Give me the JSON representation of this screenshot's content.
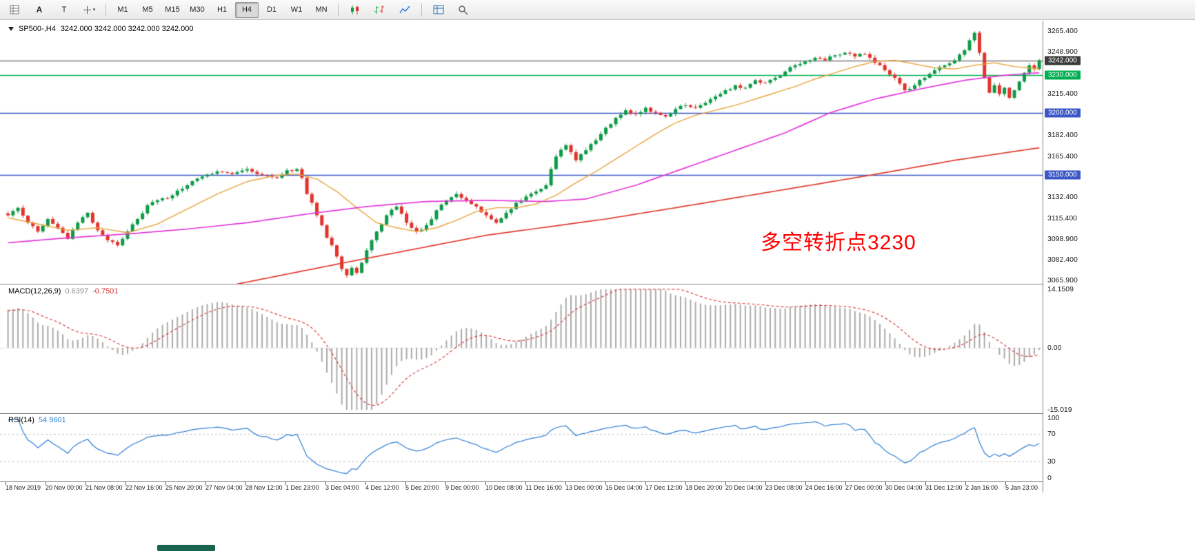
{
  "toolbar": {
    "left_icons": [
      {
        "name": "chart-grid-icon",
        "type": "svg"
      },
      {
        "name": "font-a-icon",
        "type": "text",
        "label": "A"
      },
      {
        "name": "text-tool-icon",
        "type": "text",
        "label": "T"
      },
      {
        "name": "cursor-mode-icon",
        "type": "svg",
        "has_caret": true
      }
    ],
    "timeframes": [
      {
        "label": "M1"
      },
      {
        "label": "M5"
      },
      {
        "label": "M15"
      },
      {
        "label": "M30"
      },
      {
        "label": "H1"
      },
      {
        "label": "H4"
      },
      {
        "label": "D1"
      },
      {
        "label": "W1"
      },
      {
        "label": "MN"
      }
    ],
    "active_timeframe": "H4",
    "right_icons": [
      {
        "name": "candlesticks-icon"
      },
      {
        "name": "bar-chart-icon"
      },
      {
        "name": "line-chart-icon"
      },
      {
        "name": "new-chart-grid-icon"
      },
      {
        "name": "zoom-icon"
      }
    ]
  },
  "chart": {
    "title": {
      "symbol_period": "SP500-,H4",
      "ohlc": "3242.000 3242.000 3242.000 3242.000"
    },
    "annotation": {
      "text": "多空转折点3230",
      "color": "#ff0000"
    },
    "levels": [
      {
        "price": 3242,
        "color": "#7d7d7d",
        "label": "3242.000",
        "badge_bg": "#3c3c3c",
        "name": "current-price-line"
      },
      {
        "price": 3230,
        "color": "#00b050",
        "label": "3230.000",
        "badge_bg": "#00b050",
        "name": "pivot-level-3230"
      },
      {
        "price": 3200,
        "color": "#3a56c8",
        "label": "3200.000",
        "badge_bg": "#3a56c8",
        "name": "support-level-3200"
      },
      {
        "price": 3150,
        "color": "#3a56c8",
        "label": "3150.000",
        "badge_bg": "#3a56c8",
        "name": "support-level-3150"
      }
    ],
    "price_scale": {
      "ticks": [
        {
          "label": "3265.400",
          "price": 3265.4
        },
        {
          "label": "3248.900",
          "price": 3248.9
        },
        {
          "label": "3215.400",
          "price": 3215.4
        },
        {
          "label": "3182.400",
          "price": 3182.4
        },
        {
          "label": "3165.400",
          "price": 3165.4
        },
        {
          "label": "3132.400",
          "price": 3132.4
        },
        {
          "label": "3115.400",
          "price": 3115.4
        },
        {
          "label": "3098.900",
          "price": 3098.9
        },
        {
          "label": "3082.400",
          "price": 3082.4
        },
        {
          "label": "3065.900",
          "price": 3065.9
        }
      ]
    }
  },
  "chart_data": {
    "type": "candlestick",
    "symbol": "SP500-",
    "timeframe": "H4",
    "bars": 208,
    "ylim": [
      3063.2,
      3273.7
    ],
    "colors": {
      "up": "#0d9b47",
      "down": "#e2332c"
    },
    "close_anchors": [
      [
        0,
        3118
      ],
      [
        2,
        3124
      ],
      [
        4,
        3112
      ],
      [
        6,
        3105
      ],
      [
        8,
        3115
      ],
      [
        10,
        3108
      ],
      [
        12,
        3099
      ],
      [
        14,
        3112
      ],
      [
        16,
        3120
      ],
      [
        18,
        3106
      ],
      [
        20,
        3098
      ],
      [
        22,
        3094
      ],
      [
        24,
        3105
      ],
      [
        26,
        3115
      ],
      [
        28,
        3126
      ],
      [
        30,
        3130
      ],
      [
        33,
        3134
      ],
      [
        36,
        3142
      ],
      [
        39,
        3149
      ],
      [
        42,
        3153
      ],
      [
        45,
        3151
      ],
      [
        48,
        3155
      ],
      [
        51,
        3150
      ],
      [
        54,
        3148
      ],
      [
        56,
        3154
      ],
      [
        58,
        3155
      ],
      [
        59,
        3148
      ],
      [
        60,
        3135
      ],
      [
        61,
        3128
      ],
      [
        62,
        3118
      ],
      [
        63,
        3110
      ],
      [
        64,
        3100
      ],
      [
        65,
        3094
      ],
      [
        66,
        3085
      ],
      [
        67,
        3075
      ],
      [
        68,
        3070
      ],
      [
        69,
        3076
      ],
      [
        70,
        3072
      ],
      [
        71,
        3080
      ],
      [
        72,
        3090
      ],
      [
        73,
        3098
      ],
      [
        74,
        3105
      ],
      [
        76,
        3118
      ],
      [
        78,
        3125
      ],
      [
        80,
        3112
      ],
      [
        82,
        3105
      ],
      [
        84,
        3110
      ],
      [
        86,
        3122
      ],
      [
        88,
        3130
      ],
      [
        90,
        3135
      ],
      [
        92,
        3130
      ],
      [
        94,
        3125
      ],
      [
        96,
        3118
      ],
      [
        98,
        3112
      ],
      [
        100,
        3120
      ],
      [
        102,
        3128
      ],
      [
        104,
        3133
      ],
      [
        106,
        3137
      ],
      [
        108,
        3142
      ],
      [
        109,
        3155
      ],
      [
        110,
        3165
      ],
      [
        112,
        3174
      ],
      [
        114,
        3162
      ],
      [
        116,
        3170
      ],
      [
        118,
        3178
      ],
      [
        120,
        3188
      ],
      [
        122,
        3196
      ],
      [
        124,
        3202
      ],
      [
        126,
        3199
      ],
      [
        128,
        3204
      ],
      [
        130,
        3200
      ],
      [
        132,
        3197
      ],
      [
        134,
        3203
      ],
      [
        136,
        3206
      ],
      [
        138,
        3204
      ],
      [
        140,
        3208
      ],
      [
        142,
        3213
      ],
      [
        144,
        3218
      ],
      [
        146,
        3222
      ],
      [
        148,
        3220
      ],
      [
        150,
        3226
      ],
      [
        152,
        3224
      ],
      [
        154,
        3228
      ],
      [
        156,
        3233
      ],
      [
        158,
        3238
      ],
      [
        160,
        3241
      ],
      [
        162,
        3244
      ],
      [
        164,
        3242
      ],
      [
        166,
        3246
      ],
      [
        168,
        3248
      ],
      [
        170,
        3245
      ],
      [
        172,
        3247
      ],
      [
        174,
        3240
      ],
      [
        176,
        3234
      ],
      [
        178,
        3228
      ],
      [
        180,
        3218
      ],
      [
        182,
        3222
      ],
      [
        184,
        3228
      ],
      [
        186,
        3234
      ],
      [
        188,
        3238
      ],
      [
        190,
        3242
      ],
      [
        192,
        3250
      ],
      [
        193,
        3258
      ],
      [
        194,
        3264
      ],
      [
        195,
        3248
      ],
      [
        196,
        3228
      ],
      [
        197,
        3216
      ],
      [
        198,
        3222
      ],
      [
        199,
        3215
      ],
      [
        200,
        3220
      ],
      [
        201,
        3212
      ],
      [
        202,
        3218
      ],
      [
        203,
        3225
      ],
      [
        204,
        3232
      ],
      [
        205,
        3238
      ],
      [
        206,
        3235
      ],
      [
        207,
        3242
      ]
    ],
    "moving_averages": [
      {
        "name": "ma-fast-orange",
        "color": "#e8a33d",
        "width": 1.4,
        "anchors": [
          [
            0,
            3116
          ],
          [
            6,
            3111
          ],
          [
            12,
            3106
          ],
          [
            18,
            3108
          ],
          [
            24,
            3104
          ],
          [
            30,
            3111
          ],
          [
            36,
            3123
          ],
          [
            42,
            3135
          ],
          [
            48,
            3145
          ],
          [
            54,
            3150
          ],
          [
            58,
            3151
          ],
          [
            62,
            3147
          ],
          [
            66,
            3137
          ],
          [
            70,
            3124
          ],
          [
            74,
            3112
          ],
          [
            78,
            3108
          ],
          [
            82,
            3105
          ],
          [
            86,
            3108
          ],
          [
            90,
            3114
          ],
          [
            94,
            3121
          ],
          [
            98,
            3124
          ],
          [
            102,
            3124
          ],
          [
            106,
            3127
          ],
          [
            110,
            3134
          ],
          [
            114,
            3144
          ],
          [
            118,
            3153
          ],
          [
            122,
            3163
          ],
          [
            126,
            3173
          ],
          [
            130,
            3183
          ],
          [
            134,
            3192
          ],
          [
            138,
            3198
          ],
          [
            142,
            3202
          ],
          [
            146,
            3206
          ],
          [
            150,
            3211
          ],
          [
            154,
            3216
          ],
          [
            158,
            3221
          ],
          [
            162,
            3227
          ],
          [
            166,
            3232
          ],
          [
            170,
            3237
          ],
          [
            174,
            3241
          ],
          [
            178,
            3242
          ],
          [
            182,
            3239
          ],
          [
            186,
            3236
          ],
          [
            190,
            3235
          ],
          [
            194,
            3238
          ],
          [
            198,
            3240
          ],
          [
            202,
            3237
          ],
          [
            207,
            3235
          ]
        ]
      },
      {
        "name": "ma-mid-magenta",
        "color": "#e236d8",
        "width": 1.7,
        "anchors": [
          [
            0,
            3096
          ],
          [
            12,
            3100
          ],
          [
            24,
            3103
          ],
          [
            36,
            3107
          ],
          [
            48,
            3112
          ],
          [
            60,
            3119
          ],
          [
            72,
            3125
          ],
          [
            84,
            3129
          ],
          [
            96,
            3130
          ],
          [
            108,
            3129
          ],
          [
            116,
            3131
          ],
          [
            126,
            3142
          ],
          [
            136,
            3156
          ],
          [
            146,
            3170
          ],
          [
            156,
            3184
          ],
          [
            165,
            3200
          ],
          [
            174,
            3211
          ],
          [
            183,
            3219
          ],
          [
            192,
            3226
          ],
          [
            200,
            3230
          ],
          [
            207,
            3232
          ]
        ]
      },
      {
        "name": "ma-slow-red",
        "color": "#e03a2f",
        "width": 1.7,
        "anchors": [
          [
            46,
            3063
          ],
          [
            70,
            3082
          ],
          [
            96,
            3102
          ],
          [
            120,
            3115
          ],
          [
            137,
            3126
          ],
          [
            155,
            3138
          ],
          [
            173,
            3150
          ],
          [
            190,
            3162
          ],
          [
            207,
            3172
          ]
        ]
      }
    ]
  },
  "macd": {
    "title": "MACD(12,26,9)",
    "value_main": "0.6397",
    "value_signal": "-0.7501",
    "params": {
      "fast": 12,
      "slow": 26,
      "signal": 9
    },
    "range": [
      -15.019,
      14.1509
    ],
    "colors": {
      "histogram": "#aaaaaa",
      "signal": "#d63031"
    },
    "scale_labels": [
      {
        "label": "14.1509",
        "value": 14.1509
      },
      {
        "label": "0.00",
        "value": 0
      },
      {
        "label": "-15.019",
        "value": -15.019
      }
    ]
  },
  "rsi": {
    "title": "RSI(14)",
    "value": "54.9601",
    "period": 14,
    "levels": [
      70,
      30
    ],
    "color": "#2b7cd3",
    "range": [
      0,
      100
    ],
    "scale_labels": [
      {
        "label": "100",
        "value": 100
      },
      {
        "label": "70",
        "value": 70
      },
      {
        "label": "30",
        "value": 30
      },
      {
        "label": "0",
        "value": 0
      }
    ]
  },
  "time_axis": {
    "labels": [
      "18 Nov 2019",
      "20 Nov 00:00",
      "21 Nov 08:00",
      "22 Nov 16:00",
      "25 Nov 20:00",
      "27 Nov 04:00",
      "28 Nov 12:00",
      "1 Dec 23:00",
      "3 Dec 04:00",
      "4 Dec 12:00",
      "5 Dec 20:00",
      "9 Dec 00:00",
      "10 Dec 08:00",
      "11 Dec 16:00",
      "13 Dec 00:00",
      "16 Dec 04:00",
      "17 Dec 12:00",
      "18 Dec 20:00",
      "20 Dec 04:00",
      "23 Dec 08:00",
      "24 Dec 16:00",
      "27 Dec 00:00",
      "30 Dec 04:00",
      "31 Dec 12:00",
      "2 Jan 16:00",
      "5 Jan 23:00"
    ]
  }
}
